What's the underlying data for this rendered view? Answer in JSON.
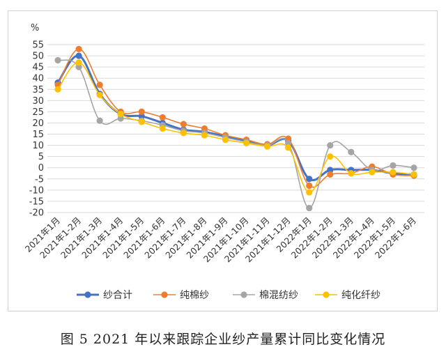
{
  "chart_data": {
    "type": "line",
    "title": "",
    "unit_label": "%",
    "ylim": [
      -20,
      55
    ],
    "y_ticks": [
      55,
      50,
      45,
      40,
      35,
      30,
      25,
      20,
      15,
      10,
      5,
      0,
      -5,
      -10,
      -15,
      -20
    ],
    "categories": [
      "2021年1月",
      "2021年1-2月",
      "2021年1-3月",
      "2021年1-4月",
      "2021年1-5月",
      "2021年1-6月",
      "2021年1-7月",
      "2021年1-8月",
      "2021年1-9月",
      "2021年1-10月",
      "2021年1-11月",
      "2021年1-12月",
      "2022年1月",
      "2022年1-2月",
      "2022年1-3月",
      "2022年1-4月",
      "2022年1-5月",
      "2022年1-6月"
    ],
    "grid": true,
    "legend": "bottom",
    "series": [
      {
        "name": "纱合计",
        "color": "#4472c4",
        "values": [
          38,
          50,
          33,
          24,
          23,
          20,
          17,
          16,
          14,
          12,
          10,
          12,
          -5,
          -1,
          -1,
          -1,
          -2.5,
          -3
        ]
      },
      {
        "name": "纯棉纱",
        "color": "#ed7d31",
        "values": [
          37,
          53,
          37,
          25,
          25,
          22.5,
          19.5,
          17.5,
          14.5,
          12.5,
          10.5,
          13,
          -8,
          -3,
          -2.5,
          0.5,
          -3,
          -3.5
        ]
      },
      {
        "name": "棉混纺纱",
        "color": "#a5a5a5",
        "values": [
          48,
          45,
          21,
          22,
          21,
          19,
          16.5,
          15.5,
          13.5,
          11.5,
          10,
          11,
          -18,
          10,
          7,
          -1,
          1,
          0
        ]
      },
      {
        "name": "纯化纤纱",
        "color": "#ffc000",
        "values": [
          35,
          47,
          32.5,
          24,
          20.5,
          17.5,
          15.5,
          14.5,
          12.5,
          11,
          9.5,
          9,
          -11,
          5,
          -2.5,
          -2,
          -2,
          -3
        ]
      }
    ]
  },
  "caption": "图 5   2021 年以来跟踪企业纱产量累计同比变化情况"
}
